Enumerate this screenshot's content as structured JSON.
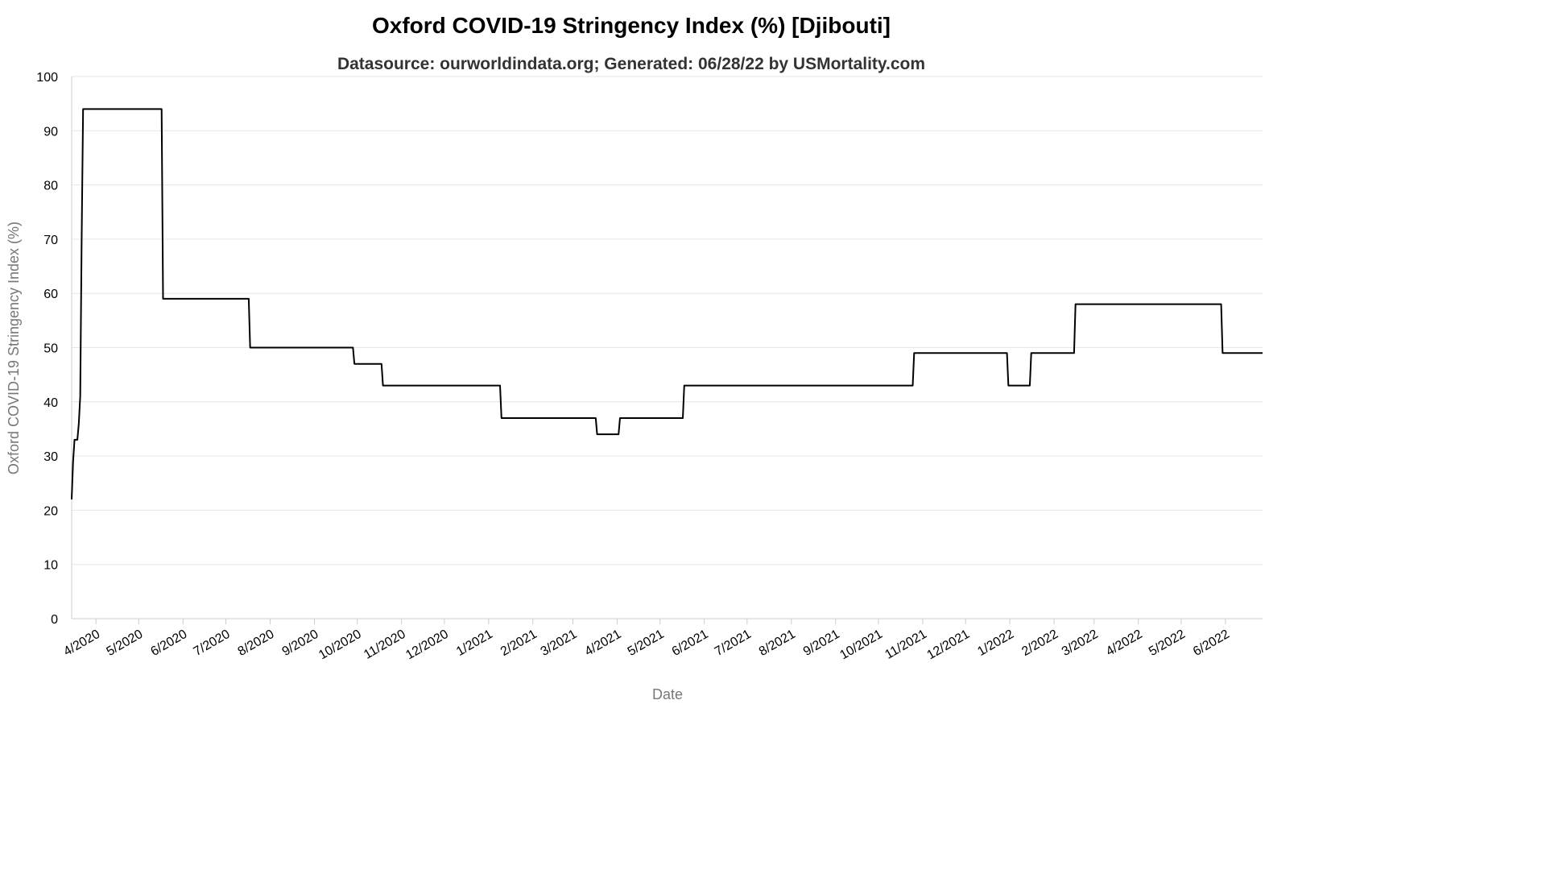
{
  "chart_data": {
    "type": "line",
    "title": "Oxford COVID-19 Stringency Index (%) [Djibouti]",
    "subtitle": "Datasource: ourworldindata.org; Generated: 06/28/22 by USMortality.com",
    "xlabel": "Date",
    "ylabel": "Oxford COVID-19 Stringency Index (%)",
    "ylim": [
      0,
      100
    ],
    "yticks": [
      "0",
      "10",
      "20",
      "30",
      "40",
      "50",
      "60",
      "70",
      "80",
      "90",
      "100"
    ],
    "xlim": [
      "2020-03-15",
      "2022-06-27"
    ],
    "xticks": [
      {
        "label": "4/2020",
        "date": "2020-04-01"
      },
      {
        "label": "5/2020",
        "date": "2020-05-01"
      },
      {
        "label": "6/2020",
        "date": "2020-06-01"
      },
      {
        "label": "7/2020",
        "date": "2020-07-01"
      },
      {
        "label": "8/2020",
        "date": "2020-08-01"
      },
      {
        "label": "9/2020",
        "date": "2020-09-01"
      },
      {
        "label": "10/2020",
        "date": "2020-10-01"
      },
      {
        "label": "11/2020",
        "date": "2020-11-01"
      },
      {
        "label": "12/2020",
        "date": "2020-12-01"
      },
      {
        "label": "1/2021",
        "date": "2021-01-01"
      },
      {
        "label": "2/2021",
        "date": "2021-02-01"
      },
      {
        "label": "3/2021",
        "date": "2021-03-01"
      },
      {
        "label": "4/2021",
        "date": "2021-04-01"
      },
      {
        "label": "5/2021",
        "date": "2021-05-01"
      },
      {
        "label": "6/2021",
        "date": "2021-06-01"
      },
      {
        "label": "7/2021",
        "date": "2021-07-01"
      },
      {
        "label": "8/2021",
        "date": "2021-08-01"
      },
      {
        "label": "9/2021",
        "date": "2021-09-01"
      },
      {
        "label": "10/2021",
        "date": "2021-10-01"
      },
      {
        "label": "11/2021",
        "date": "2021-11-01"
      },
      {
        "label": "12/2021",
        "date": "2021-12-01"
      },
      {
        "label": "1/2022",
        "date": "2022-01-01"
      },
      {
        "label": "2/2022",
        "date": "2022-02-01"
      },
      {
        "label": "3/2022",
        "date": "2022-03-01"
      },
      {
        "label": "4/2022",
        "date": "2022-04-01"
      },
      {
        "label": "5/2022",
        "date": "2022-05-01"
      },
      {
        "label": "6/2022",
        "date": "2022-06-01"
      }
    ],
    "grid": true,
    "series": [
      {
        "color": "#000000",
        "points": [
          {
            "x": "2020-03-15",
            "y": 22
          },
          {
            "x": "2020-03-16",
            "y": 29
          },
          {
            "x": "2020-03-17",
            "y": 33
          },
          {
            "x": "2020-03-19",
            "y": 33
          },
          {
            "x": "2020-03-20",
            "y": 36
          },
          {
            "x": "2020-03-21",
            "y": 41
          },
          {
            "x": "2020-03-22",
            "y": 70
          },
          {
            "x": "2020-03-23",
            "y": 94
          },
          {
            "x": "2020-05-17",
            "y": 94
          },
          {
            "x": "2020-05-18",
            "y": 59
          },
          {
            "x": "2020-07-17",
            "y": 59
          },
          {
            "x": "2020-07-18",
            "y": 50
          },
          {
            "x": "2020-09-28",
            "y": 50
          },
          {
            "x": "2020-09-29",
            "y": 47
          },
          {
            "x": "2020-10-18",
            "y": 47
          },
          {
            "x": "2020-10-19",
            "y": 43
          },
          {
            "x": "2021-01-09",
            "y": 43
          },
          {
            "x": "2021-01-10",
            "y": 37
          },
          {
            "x": "2021-03-17",
            "y": 37
          },
          {
            "x": "2021-03-18",
            "y": 34
          },
          {
            "x": "2021-04-02",
            "y": 34
          },
          {
            "x": "2021-04-03",
            "y": 37
          },
          {
            "x": "2021-05-17",
            "y": 37
          },
          {
            "x": "2021-05-18",
            "y": 43
          },
          {
            "x": "2021-10-25",
            "y": 43
          },
          {
            "x": "2021-10-26",
            "y": 49
          },
          {
            "x": "2021-12-30",
            "y": 49
          },
          {
            "x": "2021-12-31",
            "y": 43
          },
          {
            "x": "2022-01-15",
            "y": 43
          },
          {
            "x": "2022-01-16",
            "y": 49
          },
          {
            "x": "2022-02-15",
            "y": 49
          },
          {
            "x": "2022-02-16",
            "y": 58
          },
          {
            "x": "2022-05-29",
            "y": 58
          },
          {
            "x": "2022-05-30",
            "y": 49
          },
          {
            "x": "2022-06-27",
            "y": 49
          }
        ]
      }
    ]
  }
}
